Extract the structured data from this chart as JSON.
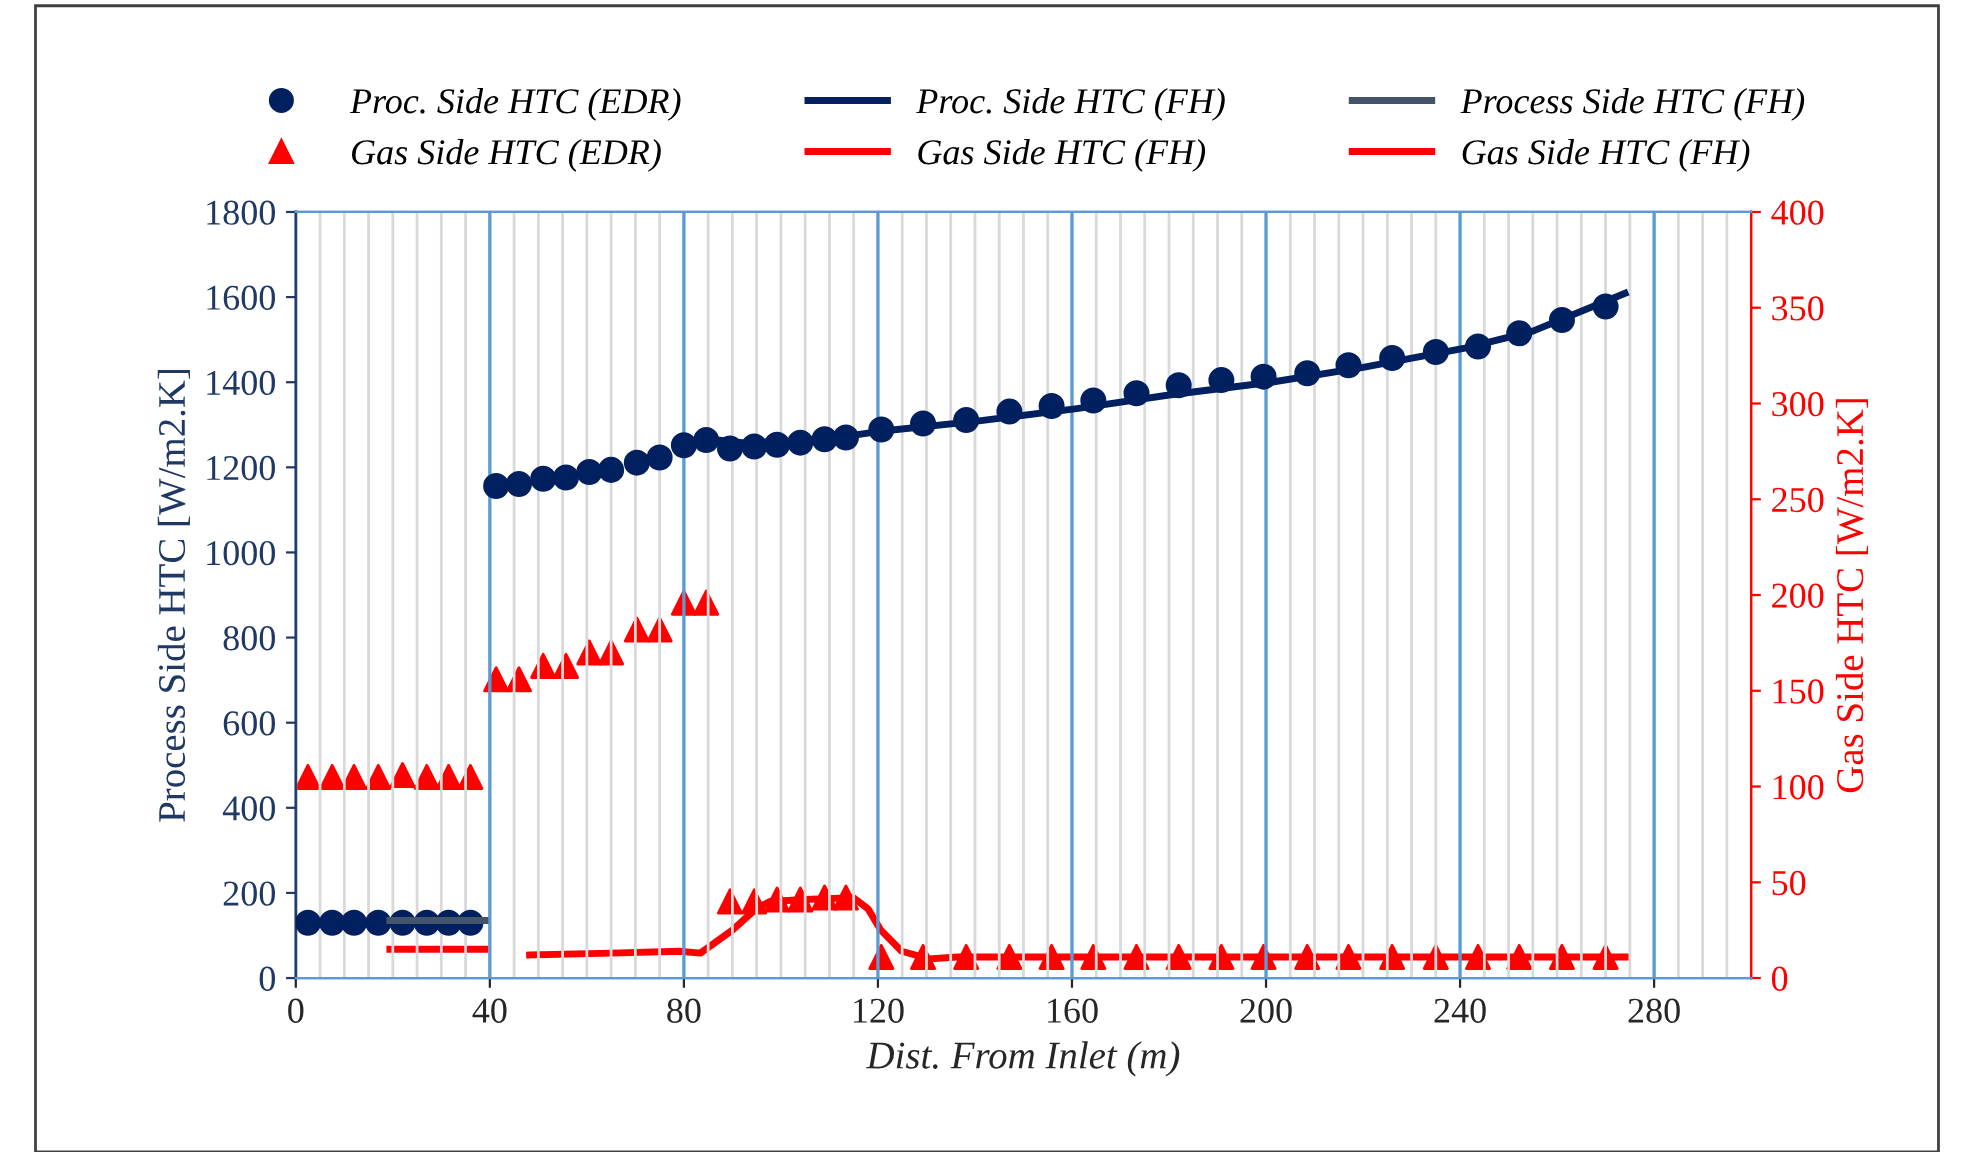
{
  "chart_data": {
    "type": "line",
    "xlabel": "Dist. From Inlet (m)",
    "ylabel": "Process Side HTC [W/m2.K]",
    "y2label": "Gas Side HTC [W/m2.K]",
    "xlim": [
      0,
      300
    ],
    "xticks": [
      0,
      {
        "value": 5,
        "label": null
      },
      {
        "value": 10,
        "label": null
      },
      {
        "value": 15,
        "label": null
      },
      {
        "value": 20,
        "label": null
      },
      {
        "value": 25,
        "label": null
      },
      {
        "value": 30,
        "label": null
      },
      {
        "value": 35,
        "label": null
      },
      40,
      {
        "value": 45,
        "label": null
      },
      {
        "value": 50,
        "label": null
      },
      {
        "value": 55,
        "label": null
      },
      {
        "value": 60,
        "label": null
      },
      {
        "value": 65,
        "label": null
      },
      {
        "value": 70,
        "label": null
      },
      {
        "value": 75,
        "label": null
      },
      80,
      {
        "value": 85,
        "label": null
      },
      {
        "value": 90,
        "label": null
      },
      {
        "value": 95,
        "label": null
      },
      {
        "value": 100,
        "label": null
      },
      {
        "value": 105,
        "label": null
      },
      {
        "value": 110,
        "label": null
      },
      {
        "value": 115,
        "label": null
      },
      120,
      {
        "value": 125,
        "label": null
      },
      {
        "value": 130,
        "label": null
      },
      {
        "value": 135,
        "label": null
      },
      {
        "value": 140,
        "label": null
      },
      {
        "value": 145,
        "label": null
      },
      {
        "value": 150,
        "label": null
      },
      {
        "value": 155,
        "label": null
      },
      160,
      {
        "value": 165,
        "label": null
      },
      {
        "value": 170,
        "label": null
      },
      {
        "value": 175,
        "label": null
      },
      {
        "value": 180,
        "label": null
      },
      {
        "value": 185,
        "label": null
      },
      {
        "value": 190,
        "label": null
      },
      {
        "value": 195,
        "label": null
      },
      200,
      {
        "value": 205,
        "label": null
      },
      {
        "value": 210,
        "label": null
      },
      {
        "value": 215,
        "label": null
      },
      {
        "value": 220,
        "label": null
      },
      {
        "value": 225,
        "label": null
      },
      {
        "value": 230,
        "label": null
      },
      {
        "value": 235,
        "label": null
      },
      240,
      {
        "value": 245,
        "label": null
      },
      {
        "value": 250,
        "label": null
      },
      {
        "value": 255,
        "label": null
      },
      {
        "value": 260,
        "label": null
      },
      {
        "value": 265,
        "label": null
      },
      {
        "value": 270,
        "label": null
      },
      {
        "value": 275,
        "label": null
      },
      280,
      {
        "value": 285,
        "label": null
      },
      {
        "value": 290,
        "label": null
      },
      {
        "value": 295,
        "label": null
      }
    ],
    "ylim": [
      0,
      1800
    ],
    "yticks": [
      0,
      200,
      400,
      600,
      800,
      1000,
      1200,
      1400,
      1600,
      1800
    ],
    "y2lim": [
      0,
      400
    ],
    "y2ticks": [
      0,
      50,
      100,
      150,
      200,
      250,
      300,
      350,
      400
    ],
    "grid": "x",
    "legend": "top",
    "series": [
      {
        "name": "Proc. Side HTC (EDR)",
        "type": "scatter",
        "marker": "circle",
        "color": "#002060",
        "x": [
          2.5,
          7.5,
          12,
          17,
          22,
          27,
          31.5,
          36,
          41.3,
          46,
          51,
          55.7,
          60.5,
          65,
          70.3,
          75,
          80,
          84.6,
          89.5,
          94.5,
          99.2,
          104,
          109,
          113.4,
          120.7,
          129.3,
          138.2,
          147.1,
          155.8,
          164.4,
          173.3,
          182,
          190.8,
          199.5,
          208.5,
          217,
          226,
          235,
          243.7,
          252.2,
          261,
          270
        ],
        "values": [
          130,
          130,
          130,
          130,
          130,
          130,
          130,
          130,
          1156,
          1161,
          1173,
          1176,
          1189,
          1194,
          1211,
          1223,
          1252,
          1264,
          1244,
          1249,
          1253,
          1258,
          1266,
          1270,
          1289,
          1303,
          1311,
          1331,
          1344,
          1357,
          1374,
          1393,
          1405,
          1413,
          1421,
          1440,
          1457,
          1471,
          1484,
          1515,
          1546,
          1578
        ]
      },
      {
        "name": "Gas Side HTC (EDR)",
        "type": "scatter",
        "marker": "triangle",
        "axis": "y2",
        "color": "#ff0000",
        "x": [
          2.5,
          7.5,
          12,
          17,
          22,
          27,
          31.5,
          36,
          41.3,
          46,
          51,
          55.7,
          60.5,
          65,
          70.3,
          75,
          80,
          84.6,
          89.5,
          94.5,
          99.2,
          104,
          109,
          113.4,
          120.7,
          129.3,
          138.2,
          147.1,
          155.8,
          164.4,
          173.3,
          182,
          190.8,
          199.5,
          208.5,
          217,
          226,
          235,
          243.7,
          252.2,
          261,
          270
        ],
        "values": [
          105,
          105,
          105,
          105,
          106,
          105,
          105,
          105,
          156,
          156,
          163,
          163,
          170,
          170,
          182,
          182,
          196,
          196,
          40,
          40,
          41,
          41,
          42,
          42,
          11,
          11,
          11,
          11,
          11,
          11,
          11,
          11,
          11,
          11,
          11,
          11,
          11,
          11,
          11,
          11,
          11,
          11
        ]
      },
      {
        "name": "Proc. Side HTC (FH)",
        "color": "#002060",
        "x": [
          84,
          92,
          100,
          113,
          120,
          140,
          161,
          180,
          201,
          220,
          241,
          255,
          274
        ],
        "values": [
          1268,
          1258,
          1260,
          1272,
          1284,
          1308,
          1338,
          1370,
          1400,
          1435,
          1480,
          1520,
          1609
        ]
      },
      {
        "name": "Gas Side HTC (FH)",
        "axis": "y2",
        "color": "#ff0000",
        "x": [
          19.4,
          39
        ],
        "values": [
          15,
          15
        ]
      },
      {
        "name": "Process Side HTC (FH)",
        "color": "#44546a",
        "x": [
          19.4,
          39
        ],
        "values": [
          135,
          135
        ]
      },
      {
        "name": "Gas Side HTC (FH)",
        "axis": "y2",
        "color": "#ff0000",
        "x": [
          48.2,
          65,
          79,
          83.4,
          90,
          94.8,
          97.7,
          105,
          114.9,
          118,
          120.6,
          124.9,
          130.6,
          136.4,
          180,
          230,
          274.4
        ],
        "values": [
          12,
          13,
          14,
          13,
          25,
          36,
          40,
          41,
          42,
          36,
          25,
          14,
          10,
          11,
          11,
          11,
          11
        ]
      }
    ]
  }
}
